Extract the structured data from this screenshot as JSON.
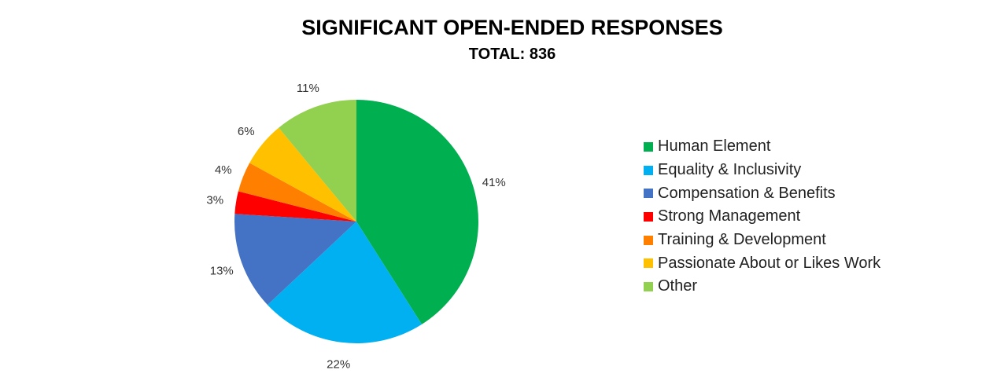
{
  "chart_data": {
    "type": "pie",
    "title": "SIGNIFICANT OPEN-ENDED RESPONSES",
    "subtitle": "TOTAL: 836",
    "categories": [
      "Human Element",
      "Equality & Inclusivity",
      "Compensation & Benefits",
      "Strong Management",
      "Training & Development",
      "Passionate About or Likes Work",
      "Other"
    ],
    "values": [
      41,
      22,
      13,
      3,
      4,
      6,
      11
    ],
    "labels": [
      "41%",
      "22%",
      "13%",
      "3%",
      "4%",
      "6%",
      "11%"
    ],
    "colors": [
      "#00B050",
      "#00B0F0",
      "#4472C4",
      "#FF0000",
      "#FF8000",
      "#FFC000",
      "#92D050"
    ],
    "legend_position": "right"
  }
}
